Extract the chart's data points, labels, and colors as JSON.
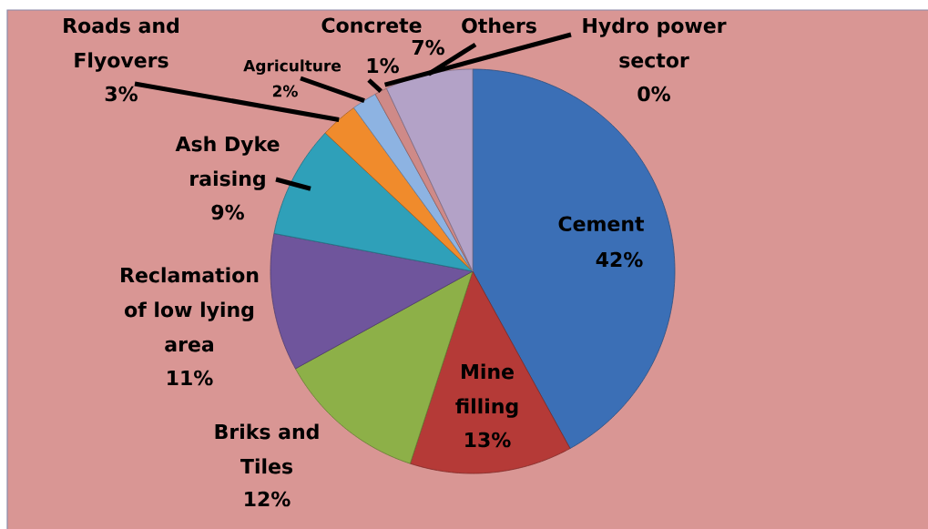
{
  "chart_data": {
    "type": "pie",
    "categories": [
      "Cement",
      "Mine filling",
      "Briks and Tiles",
      "Reclamation of low lying area",
      "Ash Dyke raising",
      "Roads and Flyovers",
      "Agriculture",
      "Concrete",
      "Hydro power sector",
      "Others"
    ],
    "values": [
      42,
      13,
      12,
      11,
      9,
      3,
      2,
      1,
      0,
      7
    ],
    "colors": [
      "#3b6fb6",
      "#b53a37",
      "#8db048",
      "#6f559c",
      "#2fa0b9",
      "#f08b2c",
      "#8db3e2",
      "#cf8a88",
      null,
      "#b3a2c7"
    ],
    "value_labels": [
      "42%",
      "13%",
      "12%",
      "11%",
      "9%",
      "3%",
      "2%",
      "1%",
      "0%",
      "7%"
    ]
  }
}
